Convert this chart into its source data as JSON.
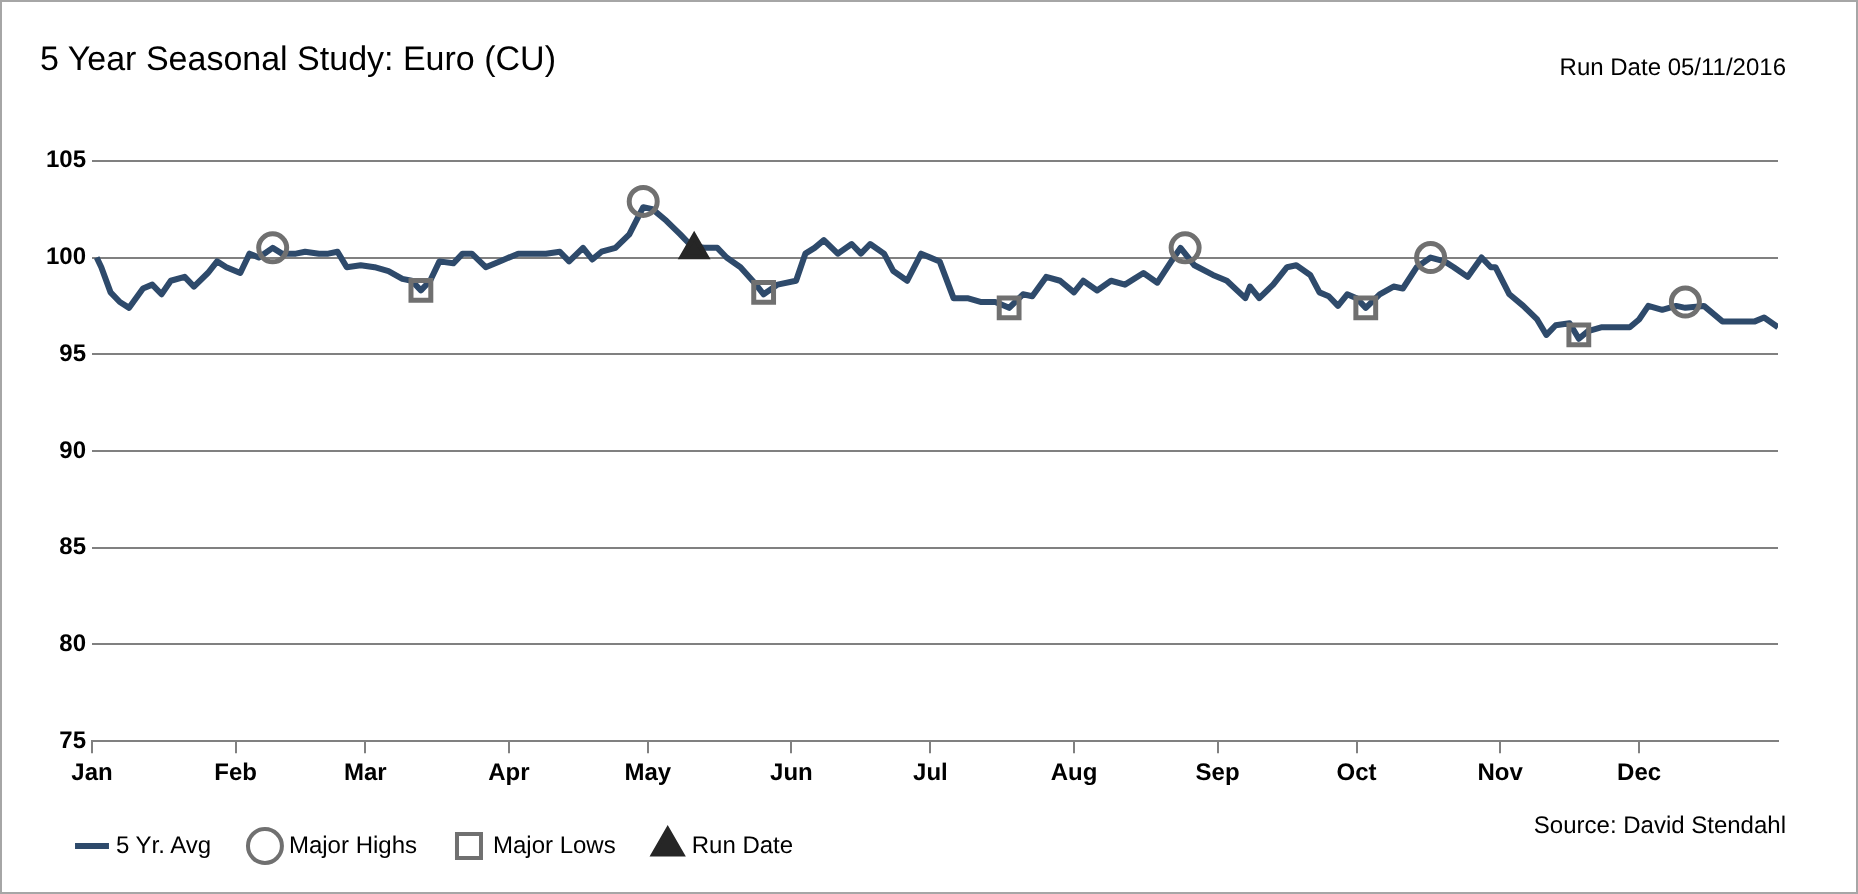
{
  "chart_data": {
    "type": "line",
    "title": "5 Year Seasonal Study: Euro (CU)",
    "annotations": [
      "Run Date 05/11/2016",
      "Source: David Stendahl"
    ],
    "xlim": [
      "--01-01",
      "--12-31"
    ],
    "xticks": [
      {
        "value": "--01-01",
        "label": "Jan"
      },
      {
        "value": "--02-01",
        "label": "Feb"
      },
      {
        "value": "--03-01",
        "label": "Mar"
      },
      {
        "value": "--04-01",
        "label": "Apr"
      },
      {
        "value": "--05-01",
        "label": "May"
      },
      {
        "value": "--06-01",
        "label": "Jun"
      },
      {
        "value": "--07-01",
        "label": "Jul"
      },
      {
        "value": "--08-01",
        "label": "Aug"
      },
      {
        "value": "--09-01",
        "label": "Sep"
      },
      {
        "value": "--10-01",
        "label": "Oct"
      },
      {
        "value": "--11-01",
        "label": "Nov"
      },
      {
        "value": "--12-01",
        "label": "Dec"
      }
    ],
    "ylim": [
      75,
      105
    ],
    "yticks": [
      75,
      80,
      85,
      90,
      95,
      100,
      105
    ],
    "grid": "y",
    "legend": "bottom",
    "line_style": "solid",
    "series": [
      {
        "name": "5 Yr. Avg",
        "marker": "none",
        "color": "#2e4a6b",
        "x": [
          "--01-02",
          "--01-03",
          "--01-05",
          "--01-07",
          "--01-09",
          "--01-12",
          "--01-14",
          "--01-16",
          "--01-18",
          "--01-21",
          "--01-23",
          "--01-26",
          "--01-28",
          "--01-30",
          "--02-02",
          "--02-04",
          "--02-06",
          "--02-09",
          "--02-11",
          "--02-14",
          "--02-16",
          "--02-19",
          "--02-21",
          "--02-23",
          "--02-25",
          "--02-28",
          "--03-03",
          "--03-06",
          "--03-09",
          "--03-11",
          "--03-13",
          "--03-15",
          "--03-17",
          "--03-20",
          "--03-22",
          "--03-24",
          "--03-27",
          "--03-30",
          "--04-03",
          "--04-06",
          "--04-09",
          "--04-12",
          "--04-14",
          "--04-17",
          "--04-19",
          "--04-21",
          "--04-24",
          "--04-27",
          "--04-30",
          "--05-02",
          "--05-05",
          "--05-08",
          "--05-10",
          "--05-13",
          "--05-16",
          "--05-18",
          "--05-21",
          "--05-24",
          "--05-26",
          "--05-29",
          "--06-02",
          "--06-04",
          "--06-06",
          "--06-08",
          "--06-11",
          "--06-14",
          "--06-16",
          "--06-18",
          "--06-21",
          "--06-23",
          "--06-26",
          "--06-29",
          "--07-03",
          "--07-06",
          "--07-09",
          "--07-12",
          "--07-15",
          "--07-18",
          "--07-21",
          "--07-23",
          "--07-26",
          "--07-29",
          "--08-01",
          "--08-03",
          "--08-06",
          "--08-09",
          "--08-12",
          "--08-16",
          "--08-19",
          "--08-22",
          "--08-24",
          "--08-27",
          "--08-31",
          "--09-03",
          "--09-07",
          "--09-08",
          "--09-10",
          "--09-13",
          "--09-16",
          "--09-18",
          "--09-21",
          "--09-23",
          "--09-25",
          "--09-27",
          "--09-29",
          "--10-01",
          "--10-03",
          "--10-06",
          "--10-09",
          "--10-11",
          "--10-14",
          "--10-17",
          "--10-20",
          "--10-22",
          "--10-25",
          "--10-28",
          "--10-30",
          "--10-31",
          "--11-03",
          "--11-06",
          "--11-09",
          "--11-11",
          "--11-13",
          "--11-16",
          "--11-18",
          "--11-20",
          "--11-23",
          "--11-26",
          "--11-29",
          "--12-01",
          "--12-03",
          "--12-06",
          "--12-09",
          "--12-11",
          "--12-15",
          "--12-19",
          "--12-23",
          "--12-26",
          "--12-28",
          "--12-31"
        ],
        "values": [
          100,
          99.5,
          98.2,
          97.7,
          97.4,
          98.4,
          98.6,
          98.1,
          98.8,
          99,
          98.5,
          99.2,
          99.8,
          99.5,
          99.2,
          100.2,
          100,
          100.5,
          100.2,
          100.2,
          100.3,
          100.2,
          100.2,
          100.3,
          99.5,
          99.6,
          99.5,
          99.3,
          98.9,
          98.8,
          98.3,
          98.8,
          99.8,
          99.7,
          100.2,
          100.2,
          99.5,
          99.8,
          100.2,
          100.2,
          100.2,
          100.3,
          99.8,
          100.5,
          99.9,
          100.3,
          100.5,
          101.2,
          102.6,
          102.5,
          101.9,
          101.2,
          100.7,
          100.5,
          100.5,
          100,
          99.5,
          98.7,
          98.1,
          98.6,
          98.8,
          100.2,
          100.5,
          100.9,
          100.2,
          100.7,
          100.2,
          100.7,
          100.2,
          99.3,
          98.8,
          100.2,
          99.8,
          97.9,
          97.9,
          97.7,
          97.7,
          97.4,
          98.1,
          98,
          99,
          98.8,
          98.2,
          98.8,
          98.3,
          98.8,
          98.6,
          99.2,
          98.7,
          99.8,
          100.5,
          99.6,
          99.1,
          98.8,
          97.9,
          98.5,
          97.9,
          98.6,
          99.5,
          99.6,
          99.1,
          98.2,
          98,
          97.5,
          98.1,
          97.9,
          97.4,
          98.1,
          98.5,
          98.4,
          99.5,
          100,
          99.8,
          99.5,
          99,
          100,
          99.5,
          99.5,
          98.1,
          97.5,
          96.8,
          96,
          96.5,
          96.6,
          95.8,
          96.2,
          96.4,
          96.4,
          96.4,
          96.8,
          97.5,
          97.3,
          97.5,
          97.4,
          97.5,
          96.7,
          96.7,
          96.7,
          96.9,
          96.4
        ]
      },
      {
        "name": "Major Highs",
        "type": "scatter",
        "marker": "circle",
        "color": "#707070",
        "x": [
          "--02-09",
          "--04-30",
          "--08-25",
          "--10-17",
          "--12-11"
        ],
        "values": [
          100.5,
          102.9,
          100.5,
          100,
          97.7
        ]
      },
      {
        "name": "Major Lows",
        "type": "scatter",
        "marker": "square",
        "color": "#707070",
        "x": [
          "--03-13",
          "--05-26",
          "--07-18",
          "--10-03",
          "--11-18"
        ],
        "values": [
          98.3,
          98.2,
          97.4,
          97.4,
          96
        ]
      },
      {
        "name": "Run Date",
        "type": "scatter",
        "marker": "triangle",
        "color": "#262626",
        "x": [
          "--05-11"
        ],
        "values": [
          100.4
        ]
      }
    ]
  }
}
